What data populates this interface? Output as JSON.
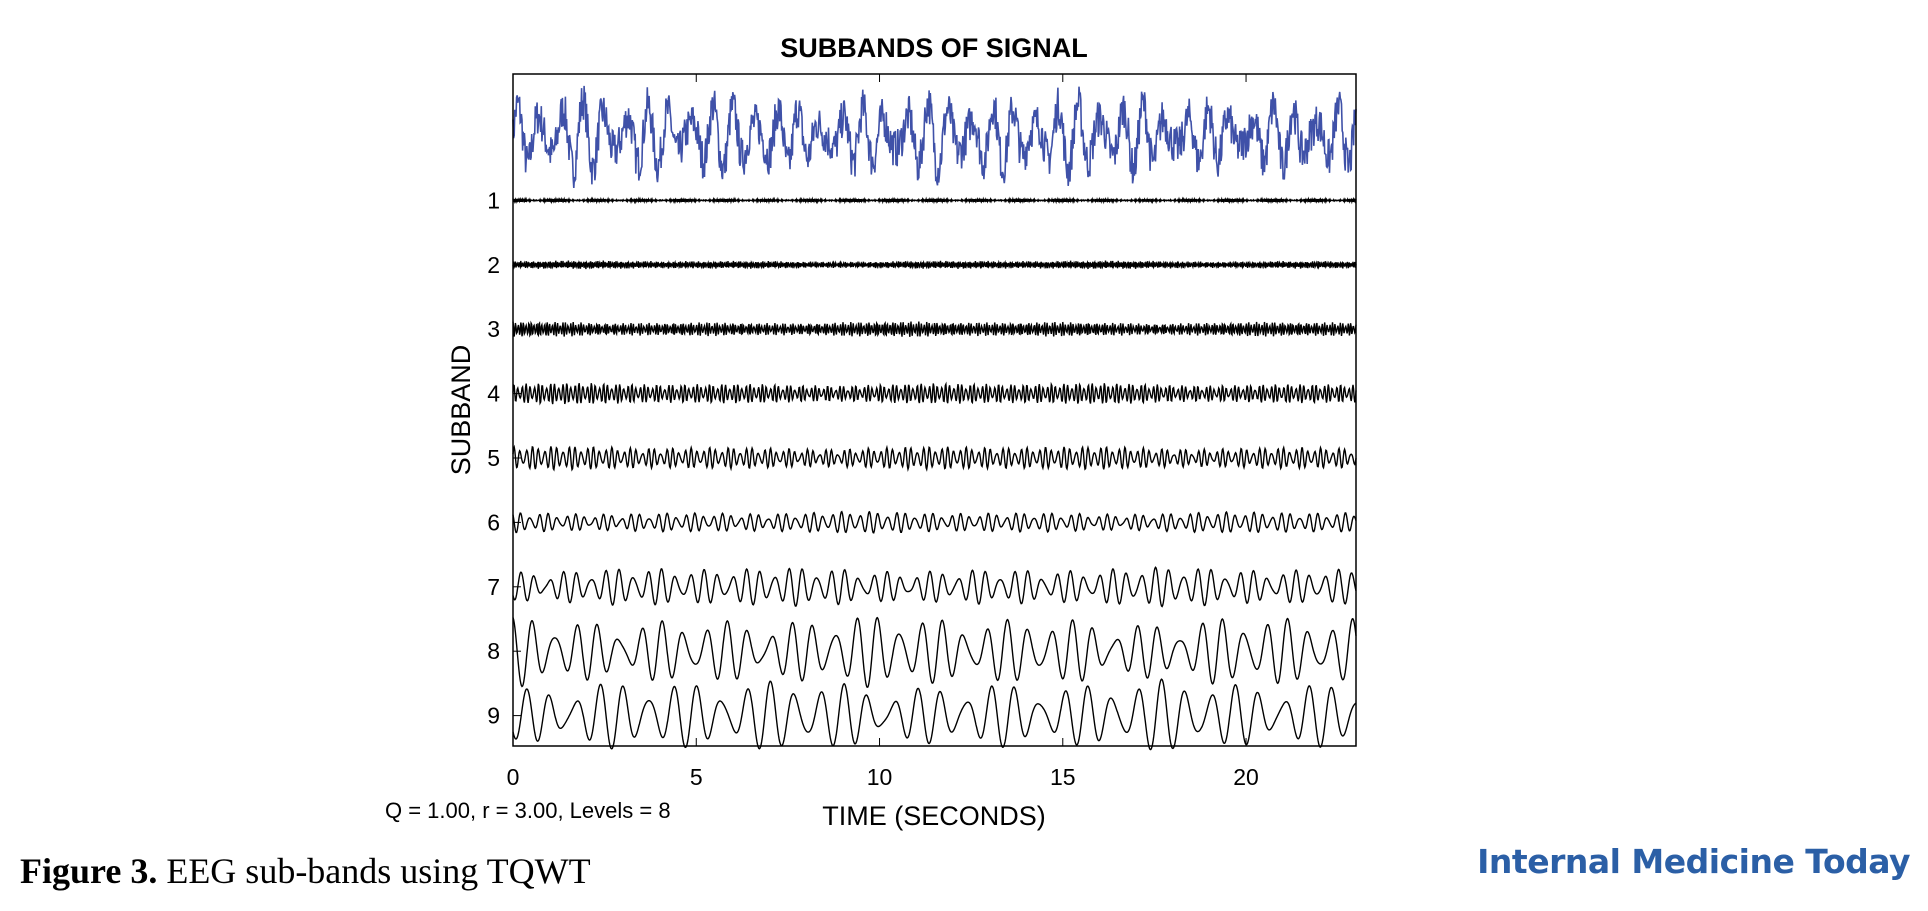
{
  "chart_data": {
    "type": "line",
    "title": "SUBBANDS OF SIGNAL",
    "xlabel": "TIME (SECONDS)",
    "ylabel": "SUBBAND",
    "xlim": [
      0,
      23
    ],
    "x_ticks": [
      "0",
      "5",
      "10",
      "15",
      "20"
    ],
    "x_tick_values": [
      0,
      5,
      10,
      15,
      20
    ],
    "y_tick_labels": [
      "1",
      "2",
      "3",
      "4",
      "5",
      "6",
      "7",
      "8",
      "9"
    ],
    "annotation": "Q = 1.00, r = 3.00, Levels = 8",
    "grid": false,
    "series": [
      {
        "role": "original signal",
        "color": "#3f51a8",
        "dominant_freq_hz": 1.7,
        "amplitude": 1.0,
        "noise": 0.9
      },
      {
        "subband": "1",
        "color": "#000000",
        "dominant_freq_hz": 30,
        "amplitude": 0.05
      },
      {
        "subband": "2",
        "color": "#000000",
        "dominant_freq_hz": 20,
        "amplitude": 0.12
      },
      {
        "subband": "3",
        "color": "#000000",
        "dominant_freq_hz": 14,
        "amplitude": 0.22
      },
      {
        "subband": "4",
        "color": "#000000",
        "dominant_freq_hz": 9,
        "amplitude": 0.3
      },
      {
        "subband": "5",
        "color": "#000000",
        "dominant_freq_hz": 6,
        "amplitude": 0.33
      },
      {
        "subband": "6",
        "color": "#000000",
        "dominant_freq_hz": 4,
        "amplitude": 0.3
      },
      {
        "subband": "7",
        "color": "#000000",
        "dominant_freq_hz": 2.6,
        "amplitude": 0.55
      },
      {
        "subband": "8",
        "color": "#000000",
        "dominant_freq_hz": 1.7,
        "amplitude": 1.0
      },
      {
        "subband": "9",
        "color": "#000000",
        "dominant_freq_hz": 1.5,
        "amplitude": 1.0
      }
    ]
  },
  "caption": {
    "label": "Figure 3.",
    "text": " EEG sub-bands using TQWT"
  },
  "brand": {
    "name": "Internal Medicine Today",
    "color": "#2b5fa6"
  }
}
